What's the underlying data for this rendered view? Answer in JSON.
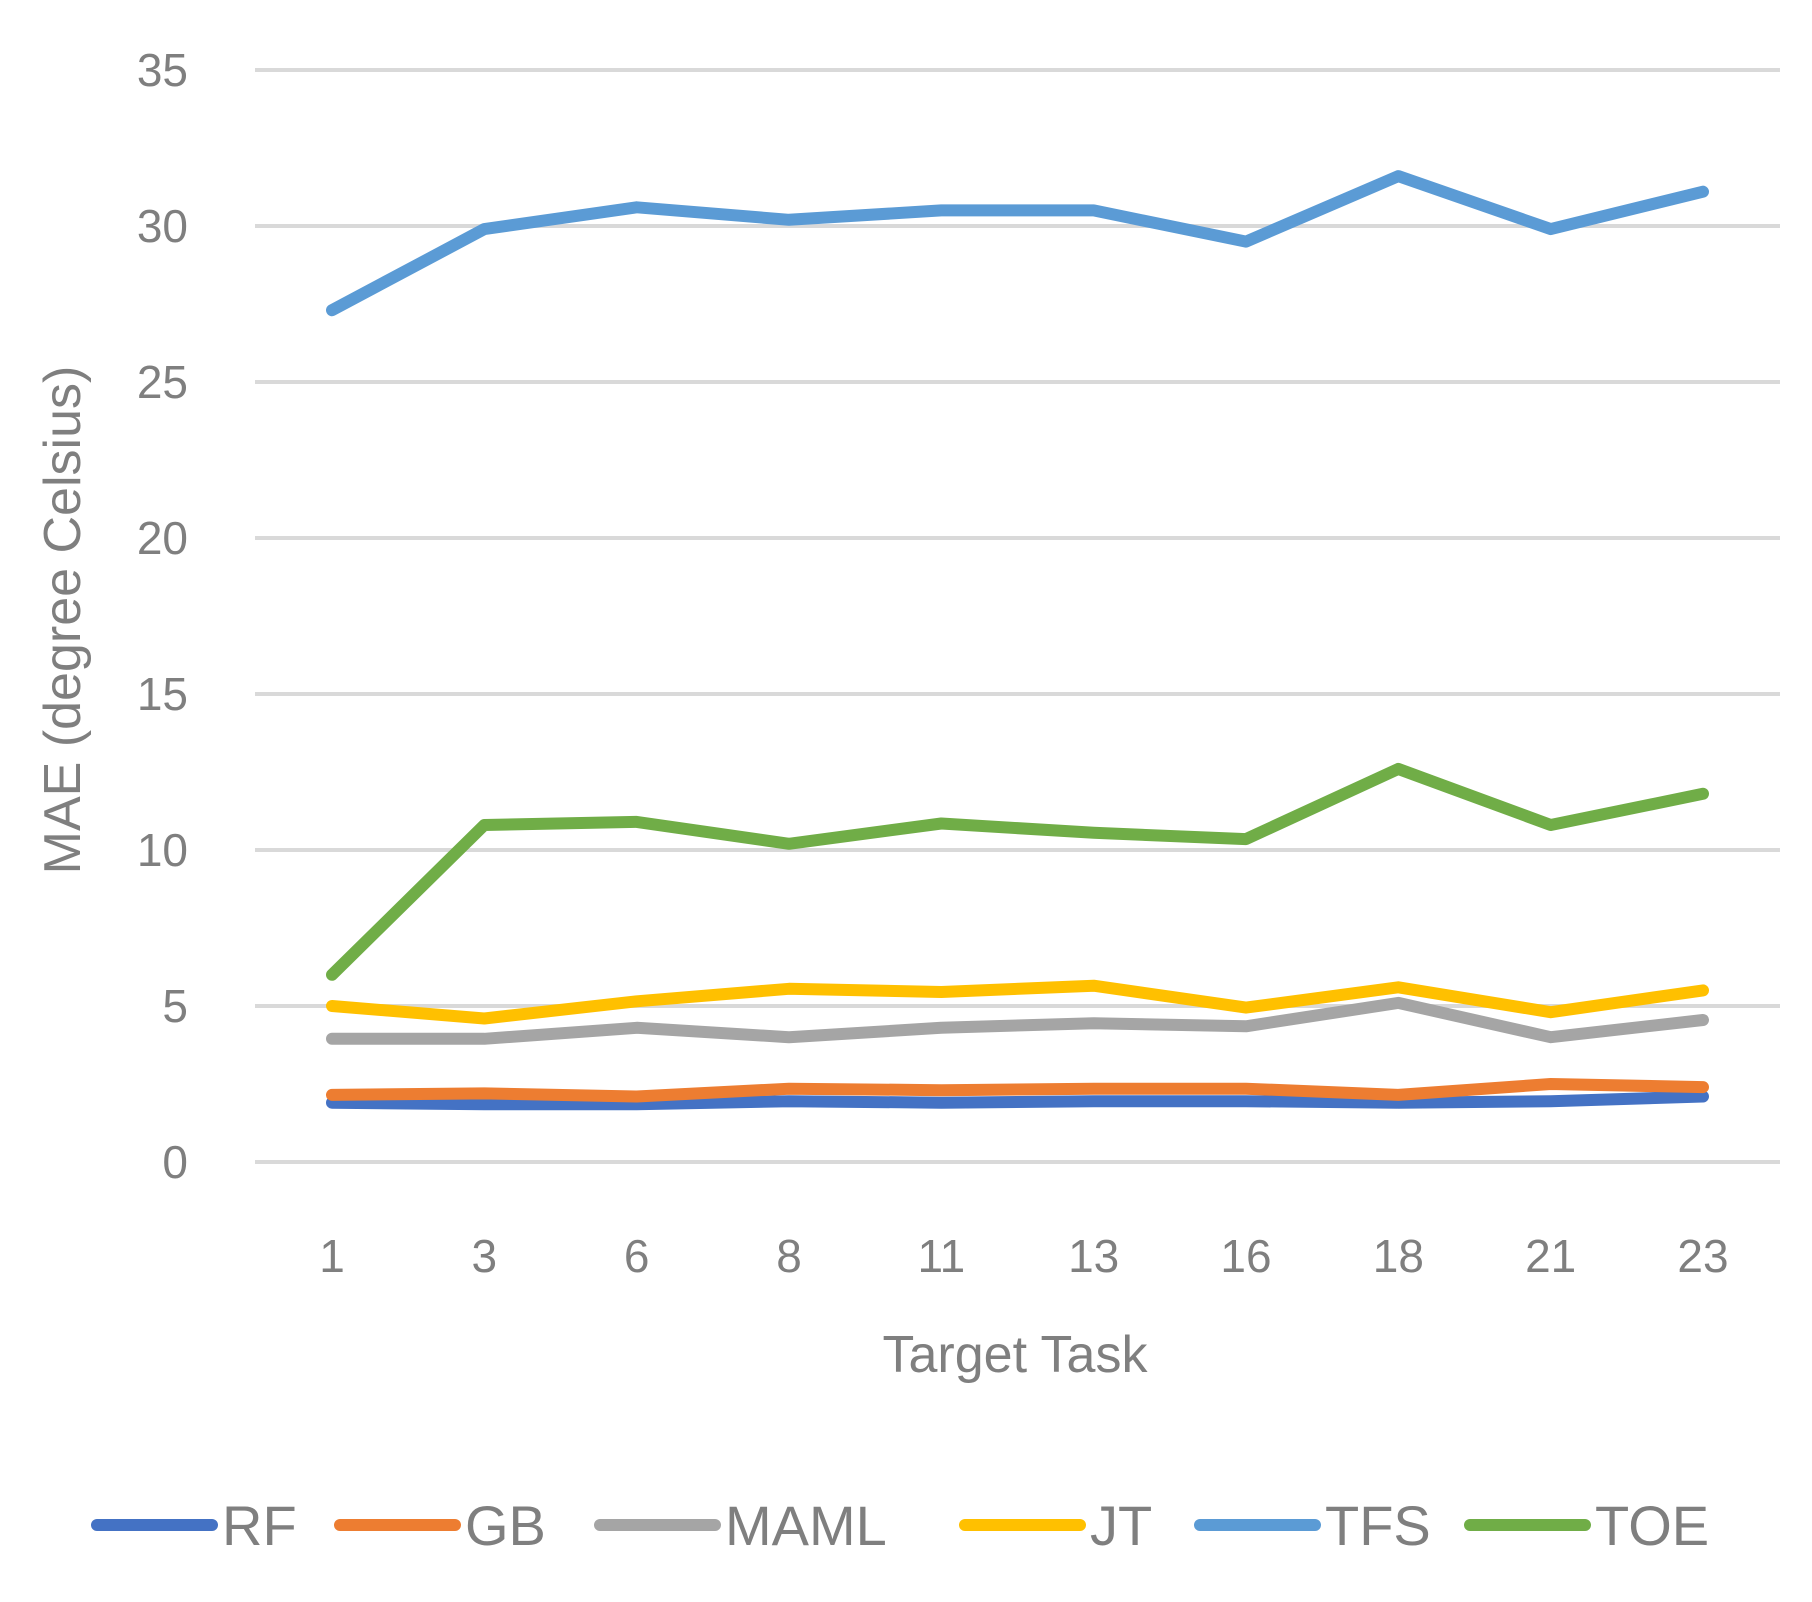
{
  "chart_data": {
    "type": "line",
    "title": "",
    "xlabel": "Target Task",
    "ylabel": "MAE (degree Celsius)",
    "categories": [
      "1",
      "3",
      "6",
      "8",
      "11",
      "13",
      "16",
      "18",
      "21",
      "23"
    ],
    "ylim": [
      0,
      35
    ],
    "yticks": [
      0,
      5,
      10,
      15,
      20,
      25,
      30,
      35
    ],
    "grid": true,
    "legend_position": "bottom",
    "series": [
      {
        "name": "RF",
        "color": "#4472c4",
        "values": [
          1.9,
          1.85,
          1.85,
          1.95,
          1.9,
          1.95,
          1.95,
          1.9,
          1.95,
          2.1
        ]
      },
      {
        "name": "GB",
        "color": "#ed7d31",
        "values": [
          2.15,
          2.2,
          2.1,
          2.35,
          2.3,
          2.35,
          2.35,
          2.15,
          2.5,
          2.4
        ]
      },
      {
        "name": "MAML",
        "color": "#a5a5a5",
        "values": [
          3.95,
          3.95,
          4.3,
          4.0,
          4.3,
          4.45,
          4.35,
          5.1,
          4.0,
          4.55
        ]
      },
      {
        "name": "JT",
        "color": "#ffc000",
        "values": [
          5.0,
          4.6,
          5.15,
          5.55,
          5.45,
          5.65,
          4.95,
          5.6,
          4.8,
          5.5
        ]
      },
      {
        "name": "TFS",
        "color": "#5b9bd5",
        "values": [
          27.3,
          29.9,
          30.6,
          30.2,
          30.5,
          30.5,
          29.5,
          31.6,
          29.9,
          31.1
        ]
      },
      {
        "name": "TOE",
        "color": "#70ad47",
        "values": [
          6.0,
          10.8,
          10.9,
          10.2,
          10.85,
          10.55,
          10.35,
          12.6,
          10.8,
          11.8
        ]
      }
    ]
  }
}
